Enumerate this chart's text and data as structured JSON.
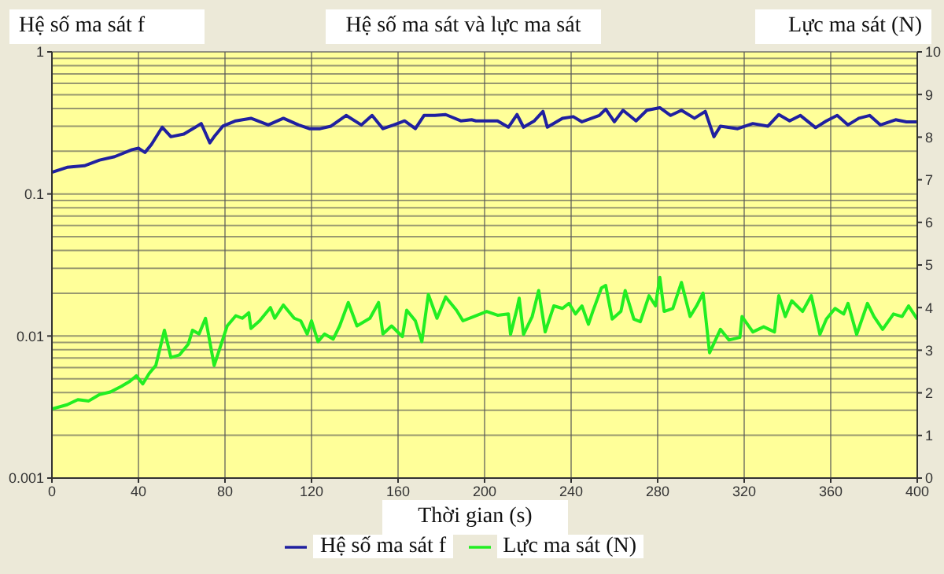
{
  "chart_data": {
    "type": "line",
    "title": "Hệ số ma sát và lực ma sát",
    "xlabel": "Thời gian (s)",
    "ylabel": "Hệ số ma sát f",
    "y2label": "Lực ma sát (N)",
    "log": "y",
    "grid": true,
    "legend": "bottom",
    "marker": "none",
    "line_style": "solid",
    "xlim": [
      0,
      400
    ],
    "xticks": [
      0,
      40,
      80,
      120,
      160,
      200,
      240,
      280,
      320,
      360,
      400
    ],
    "ylim": [
      0.001,
      1
    ],
    "yticks": [
      0.001,
      0.01,
      0.1,
      1
    ],
    "y2lim": [
      0,
      10
    ],
    "y2ticks": [
      0,
      1,
      2,
      3,
      4,
      5,
      6,
      7,
      8,
      9,
      10
    ],
    "series": [
      {
        "name": "Hệ số ma sát f",
        "color": "#2020a0",
        "x": [
          0,
          7,
          15,
          22,
          29,
          37,
          40,
          43,
          46,
          51,
          55,
          61,
          66,
          69,
          73,
          75,
          79,
          85,
          92,
          100,
          107,
          114,
          119,
          124,
          129,
          136,
          143,
          148,
          153,
          158,
          163,
          168,
          172,
          177,
          182,
          189,
          194,
          196,
          206,
          211,
          215,
          218,
          223,
          227,
          229,
          236,
          241,
          245,
          253,
          256,
          260,
          264,
          270,
          275,
          281,
          286,
          291,
          297,
          302,
          306,
          309,
          317,
          324,
          331,
          336,
          341,
          346,
          353,
          358,
          363,
          368,
          373,
          378,
          383,
          390,
          395,
          400
        ],
        "values": [
          0.142,
          0.154,
          0.158,
          0.173,
          0.183,
          0.205,
          0.21,
          0.196,
          0.223,
          0.295,
          0.253,
          0.264,
          0.293,
          0.313,
          0.229,
          0.253,
          0.3,
          0.327,
          0.341,
          0.306,
          0.341,
          0.306,
          0.288,
          0.288,
          0.3,
          0.357,
          0.306,
          0.357,
          0.288,
          0.306,
          0.327,
          0.288,
          0.357,
          0.357,
          0.362,
          0.327,
          0.333,
          0.327,
          0.327,
          0.295,
          0.362,
          0.295,
          0.327,
          0.381,
          0.295,
          0.341,
          0.35,
          0.322,
          0.357,
          0.395,
          0.322,
          0.388,
          0.327,
          0.388,
          0.405,
          0.357,
          0.388,
          0.341,
          0.381,
          0.253,
          0.3,
          0.288,
          0.313,
          0.3,
          0.362,
          0.327,
          0.357,
          0.293,
          0.327,
          0.357,
          0.306,
          0.341,
          0.357,
          0.306,
          0.333,
          0.322,
          0.322
        ]
      },
      {
        "name": "Lực ma sát (N)",
        "color": "#22ee22",
        "axis": "y2",
        "x": [
          0,
          7,
          12,
          17,
          22,
          27,
          32,
          36,
          39,
          42,
          45,
          48,
          52,
          55,
          59,
          63,
          65,
          68,
          71,
          75,
          77,
          81,
          85,
          88,
          91,
          92,
          96,
          101,
          103,
          107,
          112,
          115,
          118,
          120,
          123,
          126,
          130,
          133,
          137,
          141,
          147,
          151,
          153,
          157,
          162,
          164,
          168,
          171,
          174,
          178,
          182,
          187,
          190,
          195,
          201,
          206,
          211,
          212,
          215,
          216,
          218,
          222,
          225,
          228,
          232,
          236,
          239,
          242,
          245,
          248,
          250,
          254,
          256,
          259,
          263,
          265,
          269,
          272,
          276,
          279,
          281,
          283,
          287,
          291,
          295,
          298,
          301,
          304,
          309,
          313,
          318,
          319,
          324,
          329,
          334,
          336,
          339,
          342,
          347,
          351,
          355,
          358,
          362,
          366,
          368,
          372,
          377,
          380,
          384,
          389,
          393,
          396,
          400
        ],
        "values": [
          1.62,
          1.72,
          1.84,
          1.81,
          1.96,
          2.02,
          2.15,
          2.27,
          2.4,
          2.21,
          2.46,
          2.64,
          3.47,
          2.83,
          2.89,
          3.14,
          3.47,
          3.38,
          3.75,
          2.64,
          2.95,
          3.57,
          3.81,
          3.75,
          3.88,
          3.51,
          3.69,
          4.0,
          3.75,
          4.06,
          3.75,
          3.69,
          3.38,
          3.69,
          3.2,
          3.38,
          3.26,
          3.57,
          4.12,
          3.57,
          3.75,
          4.12,
          3.38,
          3.57,
          3.32,
          3.94,
          3.69,
          3.2,
          4.31,
          3.75,
          4.25,
          3.94,
          3.69,
          3.79,
          3.91,
          3.82,
          3.85,
          3.37,
          3.98,
          4.22,
          3.37,
          3.79,
          4.4,
          3.43,
          4.04,
          3.98,
          4.1,
          3.85,
          4.04,
          3.61,
          3.91,
          4.46,
          4.52,
          3.73,
          3.91,
          4.4,
          3.73,
          3.67,
          4.28,
          4.04,
          4.71,
          3.91,
          3.98,
          4.59,
          3.79,
          4.04,
          4.34,
          2.94,
          3.49,
          3.24,
          3.3,
          3.79,
          3.43,
          3.55,
          3.43,
          4.28,
          3.79,
          4.16,
          3.91,
          4.28,
          3.37,
          3.73,
          3.98,
          3.85,
          4.1,
          3.37,
          4.1,
          3.79,
          3.49,
          3.85,
          3.79,
          4.04,
          3.73
        ]
      }
    ]
  }
}
